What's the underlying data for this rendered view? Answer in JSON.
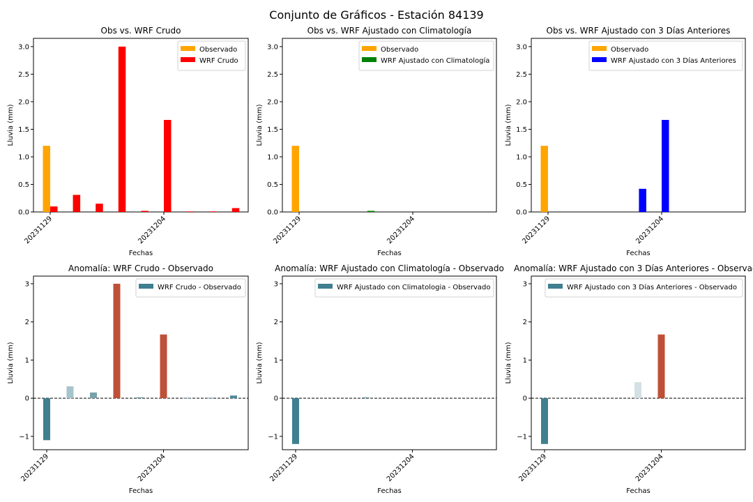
{
  "title": "Conjunto de Gráficos - Estación 84139",
  "chart_data": [
    {
      "type": "bar",
      "title": "Obs vs. WRF Crudo",
      "xlabel": "Fechas",
      "ylabel": "Lluvia (mm)",
      "x_tick_labels": [
        {
          "day": 0,
          "label": "20231129"
        },
        {
          "day": 5,
          "label": "20231204"
        }
      ],
      "y_ticks": [
        "0.0",
        "0.5",
        "1.0",
        "1.5",
        "2.0",
        "2.5",
        "3.0"
      ],
      "ylim": [
        0,
        3.15
      ],
      "legend_position": "upper right",
      "series": [
        {
          "name": "Observado",
          "color": "#ffa500",
          "points": [
            {
              "day": 0,
              "value": 1.2
            }
          ]
        },
        {
          "name": "WRF Crudo",
          "color": "#ff0000",
          "points": [
            {
              "day": 0,
              "value": 0.1
            },
            {
              "day": 1,
              "value": 0.31
            },
            {
              "day": 2,
              "value": 0.15
            },
            {
              "day": 3,
              "value": 3.0
            },
            {
              "day": 4,
              "value": 0.02
            },
            {
              "day": 5,
              "value": 1.67
            },
            {
              "day": 6,
              "value": 0.01
            },
            {
              "day": 7,
              "value": 0.01
            },
            {
              "day": 8,
              "value": 0.07
            }
          ]
        }
      ]
    },
    {
      "type": "bar",
      "title": "Obs vs. WRF Ajustado con Climatología",
      "xlabel": "Fechas",
      "ylabel": "Lluvia (mm)",
      "x_tick_labels": [
        {
          "day": 0,
          "label": "20231129"
        },
        {
          "day": 5,
          "label": "20231204"
        }
      ],
      "y_ticks": [
        "0.0",
        "0.5",
        "1.0",
        "1.5",
        "2.0",
        "2.5",
        "3.0"
      ],
      "ylim": [
        0,
        3.15
      ],
      "legend_position": "upper right",
      "series": [
        {
          "name": "Observado",
          "color": "#ffa500",
          "points": [
            {
              "day": 0,
              "value": 1.2
            }
          ]
        },
        {
          "name": "WRF Ajustado con Climatología",
          "color": "#008000",
          "points": [
            {
              "day": 3,
              "value": 0.02
            }
          ]
        }
      ]
    },
    {
      "type": "bar",
      "title": "Obs vs. WRF Ajustado con 3 Días Anteriores",
      "xlabel": "Fechas",
      "ylabel": "Lluvia (mm)",
      "x_tick_labels": [
        {
          "day": 0,
          "label": "20231129"
        },
        {
          "day": 5,
          "label": "20231204"
        }
      ],
      "y_ticks": [
        "0.0",
        "0.5",
        "1.0",
        "1.5",
        "2.0",
        "2.5",
        "3.0"
      ],
      "ylim": [
        0,
        3.15
      ],
      "legend_position": "upper right",
      "series": [
        {
          "name": "Observado",
          "color": "#ffa500",
          "points": [
            {
              "day": 0,
              "value": 1.2
            }
          ]
        },
        {
          "name": "WRF Ajustado con 3 Días Anteriores",
          "color": "#0000ff",
          "points": [
            {
              "day": 4,
              "value": 0.42
            },
            {
              "day": 5,
              "value": 1.67
            }
          ]
        }
      ]
    },
    {
      "type": "bar",
      "title": "Anomalía: WRF Crudo - Observado",
      "xlabel": "Fechas",
      "ylabel": "Lluvia (mm)",
      "x_tick_labels": [
        {
          "day": 0,
          "label": "20231129"
        },
        {
          "day": 5,
          "label": "20231204"
        }
      ],
      "y_ticks": [
        "−1",
        "0",
        "1",
        "2",
        "3"
      ],
      "ylim": [
        -1.35,
        3.2
      ],
      "zero_line": "dashed",
      "legend_position": "upper right",
      "series": [
        {
          "name": "WRF Crudo - Observado",
          "color": "#3f7f8f",
          "points": [
            {
              "day": 0,
              "value": -1.1,
              "color": "#3f7f8f"
            },
            {
              "day": 1,
              "value": 0.31,
              "color": "#a6c4cb"
            },
            {
              "day": 2,
              "value": 0.15,
              "color": "#76a2ab"
            },
            {
              "day": 3,
              "value": 3.0,
              "color": "#bf5038"
            },
            {
              "day": 4,
              "value": 0.02,
              "color": "#4e8a98"
            },
            {
              "day": 5,
              "value": 1.67,
              "color": "#bf5038"
            },
            {
              "day": 6,
              "value": 0.01,
              "color": "#4e8a98"
            },
            {
              "day": 7,
              "value": 0.01,
              "color": "#4e8a98"
            },
            {
              "day": 8,
              "value": 0.07,
              "color": "#4e8a98"
            }
          ]
        }
      ]
    },
    {
      "type": "bar",
      "title": "Anomalía: WRF Ajustado con Climatología - Observado",
      "xlabel": "Fechas",
      "ylabel": "Lluvia (mm)",
      "x_tick_labels": [
        {
          "day": 0,
          "label": "20231129"
        },
        {
          "day": 5,
          "label": "20231204"
        }
      ],
      "y_ticks": [
        "−1",
        "0",
        "1",
        "2",
        "3"
      ],
      "ylim": [
        -1.35,
        3.2
      ],
      "zero_line": "dashed",
      "legend_position": "upper right",
      "series": [
        {
          "name": "WRF Ajustado con Climatologia - Observado",
          "color": "#3f7f8f",
          "points": [
            {
              "day": 0,
              "value": -1.2,
              "color": "#3f7f8f"
            },
            {
              "day": 3,
              "value": 0.02,
              "color": "#4e8a98"
            }
          ]
        }
      ]
    },
    {
      "type": "bar",
      "title": "Anomalía: WRF Ajustado con 3 Días Anteriores - Observado",
      "xlabel": "Fechas",
      "ylabel": "Lluvia (mm)",
      "x_tick_labels": [
        {
          "day": 0,
          "label": "20231129"
        },
        {
          "day": 5,
          "label": "20231204"
        }
      ],
      "y_ticks": [
        "−1",
        "0",
        "1",
        "2",
        "3"
      ],
      "ylim": [
        -1.35,
        3.2
      ],
      "zero_line": "dashed",
      "legend_position": "upper right",
      "series": [
        {
          "name": "WRF Ajustado con 3 Días Anteriores - Observado",
          "color": "#3f7f8f",
          "points": [
            {
              "day": 0,
              "value": -1.2,
              "color": "#3f7f8f"
            },
            {
              "day": 4,
              "value": 0.42,
              "color": "#d3e1e4"
            },
            {
              "day": 5,
              "value": 1.67,
              "color": "#bf5038"
            }
          ]
        }
      ]
    }
  ]
}
